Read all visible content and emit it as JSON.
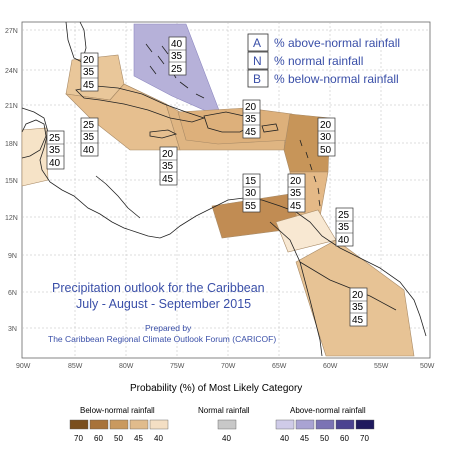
{
  "legend_box": {
    "rows": [
      {
        "key": "A",
        "text": "% above-normal rainfall"
      },
      {
        "key": "N",
        "text": "% normal rainfall"
      },
      {
        "key": "B",
        "text": "% below-normal rainfall"
      }
    ]
  },
  "title": {
    "line1": "Precipitation outlook for the Caribbean",
    "line2": "July - August - September 2015",
    "prepared_by": "Prepared by",
    "org": "The Caribbean Regional Climate Outlook Forum (CARICOF)"
  },
  "lat_ticks": [
    "27N",
    "24N",
    "21N",
    "18N",
    "15N",
    "12N",
    "9N",
    "6N",
    "3N"
  ],
  "lon_ticks": [
    "90W",
    "85W",
    "80W",
    "75W",
    "70W",
    "65W",
    "60W",
    "55W",
    "50W"
  ],
  "probability_boxes": [
    {
      "region": "bahamas-north",
      "values": [
        "40",
        "35",
        "25"
      ]
    },
    {
      "region": "western-cuba",
      "values": [
        "20",
        "35",
        "45"
      ]
    },
    {
      "region": "central-cuba",
      "values": [
        "25",
        "35",
        "40"
      ]
    },
    {
      "region": "belize",
      "values": [
        "25",
        "35",
        "40"
      ]
    },
    {
      "region": "jamaica",
      "values": [
        "20",
        "35",
        "45"
      ]
    },
    {
      "region": "hispaniola",
      "values": [
        "20",
        "35",
        "45"
      ]
    },
    {
      "region": "leeward-islands",
      "values": [
        "20",
        "30",
        "50"
      ]
    },
    {
      "region": "caribbean-south",
      "values": [
        "15",
        "30",
        "55"
      ]
    },
    {
      "region": "windward-islands",
      "values": [
        "20",
        "35",
        "45"
      ]
    },
    {
      "region": "trinidad",
      "values": [
        "25",
        "35",
        "40"
      ]
    },
    {
      "region": "guianas",
      "values": [
        "20",
        "35",
        "45"
      ]
    }
  ],
  "bottom_legend": {
    "title": "Probability (%) of Most Likely Category",
    "below": {
      "label": "Below-normal rainfall",
      "ticks": [
        "70",
        "60",
        "50",
        "45",
        "40"
      ],
      "colors": [
        "#7a4f1e",
        "#a8733a",
        "#c9995f",
        "#e0bb8c",
        "#f4dfc4"
      ]
    },
    "normal": {
      "label": "Normal rainfall",
      "ticks": [
        "40"
      ],
      "colors": [
        "#c8c8c8"
      ]
    },
    "above": {
      "label": "Above-normal rainfall",
      "ticks": [
        "40",
        "45",
        "50",
        "60",
        "70"
      ],
      "colors": [
        "#cfcbe8",
        "#a9a3d3",
        "#7b73b4",
        "#4b4390",
        "#1f1a5e"
      ]
    }
  },
  "colors": {
    "title_text": "#3a4fa8",
    "coast": "#222222",
    "grid": "#bbbbbb"
  }
}
